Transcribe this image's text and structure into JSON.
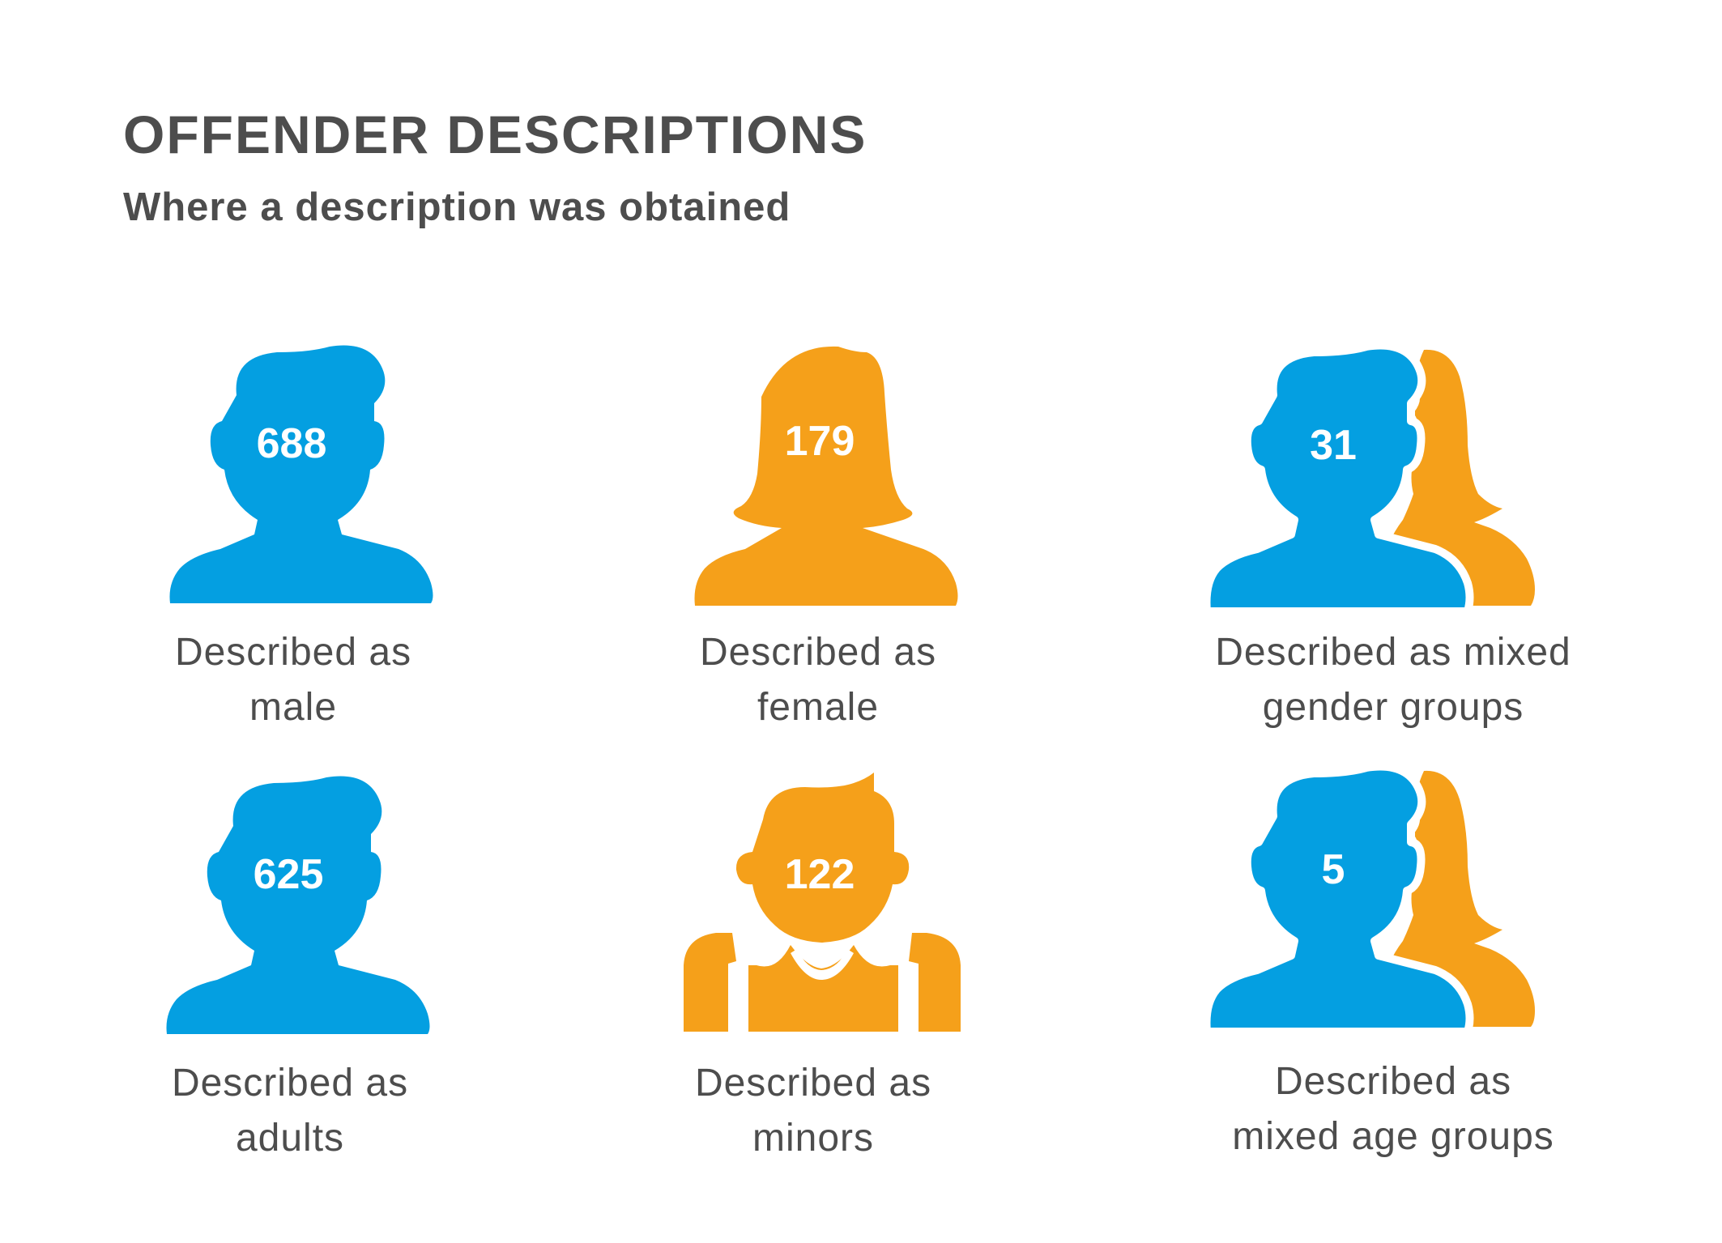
{
  "header": {
    "title": "OFFENDER DESCRIPTIONS",
    "subtitle": "Where a description was obtained"
  },
  "colors": {
    "blue": "#049fe1",
    "orange": "#f5a01a",
    "text": "#4d4d4d",
    "count_text": "#ffffff"
  },
  "items": [
    {
      "count": "688",
      "label_line1": "Described as",
      "label_line2": "male",
      "icon": "male-person-icon",
      "color": "blue"
    },
    {
      "count": "179",
      "label_line1": "Described as",
      "label_line2": "female",
      "icon": "female-person-icon",
      "color": "orange"
    },
    {
      "count": "31",
      "label_line1": "Described as mixed",
      "label_line2": "gender groups",
      "icon": "mixed-gender-group-icon",
      "color": "blue+orange"
    },
    {
      "count": "625",
      "label_line1": "Described as",
      "label_line2": "adults",
      "icon": "adult-person-icon",
      "color": "blue"
    },
    {
      "count": "122",
      "label_line1": "Described as",
      "label_line2": "minors",
      "icon": "minor-person-icon",
      "color": "orange"
    },
    {
      "count": "5",
      "label_line1": "Described as",
      "label_line2": "mixed age groups",
      "icon": "mixed-age-group-icon",
      "color": "blue+orange"
    }
  ]
}
